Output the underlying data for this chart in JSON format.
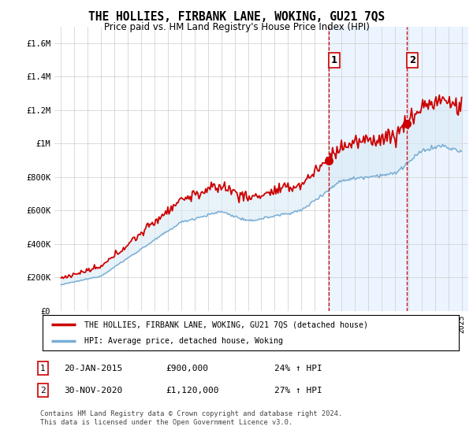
{
  "title": "THE HOLLIES, FIRBANK LANE, WOKING, GU21 7QS",
  "subtitle": "Price paid vs. HM Land Registry's House Price Index (HPI)",
  "ylim": [
    0,
    1700000
  ],
  "yticks": [
    0,
    200000,
    400000,
    600000,
    800000,
    1000000,
    1200000,
    1400000,
    1600000
  ],
  "ytick_labels": [
    "£0",
    "£200K",
    "£400K",
    "£600K",
    "£800K",
    "£1M",
    "£1.2M",
    "£1.4M",
    "£1.6M"
  ],
  "sale1_date_num": 2015.05,
  "sale1_price": 900000,
  "sale2_date_num": 2020.92,
  "sale2_price": 1120000,
  "legend_label1": "THE HOLLIES, FIRBANK LANE, WOKING, GU21 7QS (detached house)",
  "legend_label2": "HPI: Average price, detached house, Woking",
  "footer1": "Contains HM Land Registry data © Crown copyright and database right 2024.",
  "footer2": "This data is licensed under the Open Government Licence v3.0.",
  "table_row1_num": "1",
  "table_row1_date": "20-JAN-2015",
  "table_row1_price": "£900,000",
  "table_row1_hpi": "24% ↑ HPI",
  "table_row2_num": "2",
  "table_row2_date": "30-NOV-2020",
  "table_row2_price": "£1,120,000",
  "table_row2_hpi": "27% ↑ HPI",
  "line_color_red": "#cc0000",
  "line_color_blue": "#7aadd4",
  "fill_color": "#d8eaf5",
  "vline_color": "#cc0000",
  "bg_color": "#ffffff",
  "grid_color": "#cccccc",
  "span_color": "#ddeeff"
}
